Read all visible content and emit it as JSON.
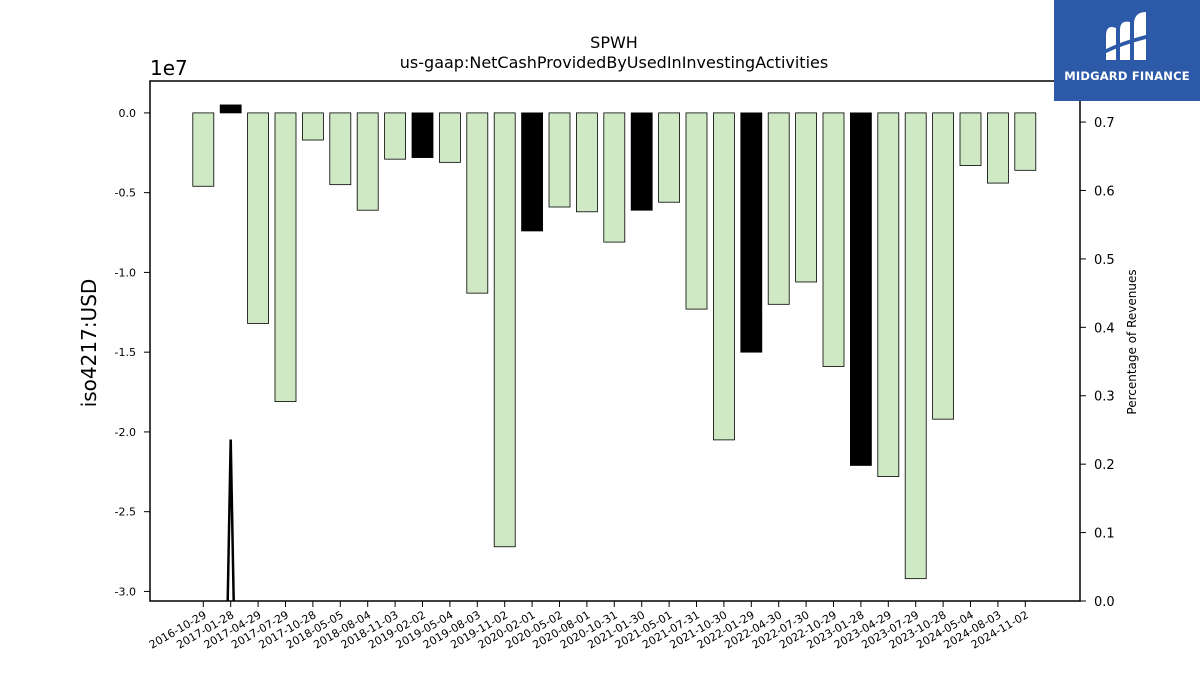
{
  "chart_data": {
    "type": "bar",
    "title": "SPWH",
    "subtitle": "us-gaap:NetCashProvidedByUsedInInvestingActivities",
    "ylabel": "iso4217:USD",
    "y_scale_label": "1e7",
    "y2label": "Percentage of Revenues",
    "ylim": [
      -30600000,
      2000000
    ],
    "y2lim": [
      0,
      0.76
    ],
    "yticks": [
      0.0,
      -0.5,
      -1.0,
      -1.5,
      -2.0,
      -2.5,
      -3.0
    ],
    "y2ticks": [
      0.0,
      0.1,
      0.2,
      0.3,
      0.4,
      0.5,
      0.6,
      0.7
    ],
    "grid": false,
    "categories": [
      "2016-10-29",
      "2017-01-28",
      "2017-04-29",
      "2017-07-29",
      "2017-10-28",
      "2018-05-05",
      "2018-08-04",
      "2018-11-03",
      "2019-02-02",
      "2019-05-04",
      "2019-08-03",
      "2019-11-02",
      "2020-02-01",
      "2020-05-02",
      "2020-08-01",
      "2020-10-31",
      "2021-01-30",
      "2021-05-01",
      "2021-07-31",
      "2021-10-30",
      "2022-01-29",
      "2022-04-30",
      "2022-07-30",
      "2022-10-29",
      "2023-01-28",
      "2023-04-29",
      "2023-07-29",
      "2023-10-28",
      "2024-05-04",
      "2024-08-03",
      "2024-11-02"
    ],
    "values": [
      -4600000,
      500000,
      -13200000,
      -18100000,
      -1700000,
      -4500000,
      -6100000,
      -2900000,
      -2800000,
      -3100000,
      -11300000,
      -27200000,
      -7400000,
      -5900000,
      -6200000,
      -8100000,
      -6100000,
      -5600000,
      -12300000,
      -20500000,
      -15000000,
      -12000000,
      -10600000,
      -15900000,
      -22100000,
      -22800000,
      -29200000,
      -19200000,
      -3300000,
      -4400000,
      -3600000
    ],
    "highlighted": [
      false,
      true,
      false,
      false,
      false,
      false,
      false,
      false,
      true,
      false,
      false,
      false,
      true,
      false,
      false,
      false,
      true,
      false,
      false,
      false,
      true,
      false,
      false,
      false,
      true,
      false,
      false,
      false,
      false,
      false,
      false
    ],
    "colors": {
      "normal": "#cfe9c5",
      "highlight": "#000000",
      "edge": "#000000"
    },
    "secondary_line": {
      "x_index": 1,
      "peak": 0.236,
      "base": 0.0
    }
  },
  "logo": {
    "text": "MIDGARD FINANCE"
  }
}
